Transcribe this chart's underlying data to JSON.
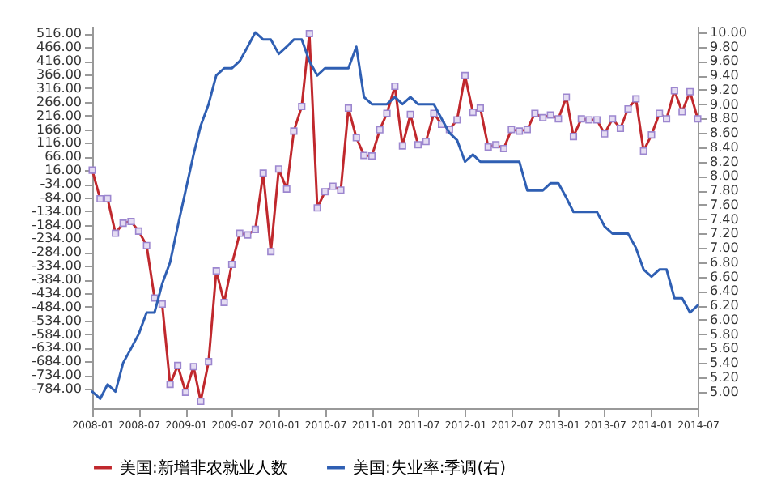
{
  "chart_data": {
    "type": "line",
    "x": [
      "2008-01",
      "2008-02",
      "2008-03",
      "2008-04",
      "2008-05",
      "2008-06",
      "2008-07",
      "2008-08",
      "2008-09",
      "2008-10",
      "2008-11",
      "2008-12",
      "2009-01",
      "2009-02",
      "2009-03",
      "2009-04",
      "2009-05",
      "2009-06",
      "2009-07",
      "2009-08",
      "2009-09",
      "2009-10",
      "2009-11",
      "2009-12",
      "2010-01",
      "2010-02",
      "2010-03",
      "2010-04",
      "2010-05",
      "2010-06",
      "2010-07",
      "2010-08",
      "2010-09",
      "2010-10",
      "2010-11",
      "2010-12",
      "2011-01",
      "2011-02",
      "2011-03",
      "2011-04",
      "2011-05",
      "2011-06",
      "2011-07",
      "2011-08",
      "2011-09",
      "2011-10",
      "2011-11",
      "2011-12",
      "2012-01",
      "2012-02",
      "2012-03",
      "2012-04",
      "2012-05",
      "2012-06",
      "2012-07",
      "2012-08",
      "2012-09",
      "2012-10",
      "2012-11",
      "2012-12",
      "2013-01",
      "2013-02",
      "2013-03",
      "2013-04",
      "2013-05",
      "2013-06",
      "2013-07",
      "2013-08",
      "2013-09",
      "2013-10",
      "2013-11",
      "2013-12",
      "2014-01",
      "2014-02",
      "2014-03",
      "2014-04",
      "2014-05",
      "2014-06",
      "2014-07"
    ],
    "series": [
      {
        "name": "美国:新增非农就业人数",
        "color": "#c0282d",
        "marker": "square",
        "values": [
          16,
          -89,
          -88,
          -215,
          -178,
          -172,
          -207,
          -260,
          -452,
          -474,
          -768,
          -699,
          -797,
          -703,
          -830,
          -685,
          -353,
          -468,
          -329,
          -215,
          -221,
          -201,
          5,
          -282,
          20,
          -53,
          159,
          249,
          516,
          -122,
          -63,
          -43,
          -57,
          243,
          135,
          70,
          68,
          164,
          224,
          323,
          105,
          220,
          109,
          121,
          224,
          184,
          165,
          200,
          362,
          228,
          243,
          101,
          109,
          95,
          165,
          159,
          165,
          224,
          208,
          218,
          204,
          283,
          139,
          204,
          200,
          200,
          149,
          204,
          169,
          240,
          277,
          86,
          145,
          224,
          204,
          307,
          230,
          303,
          204
        ]
      },
      {
        "name": "美国:失业率:季调(右)",
        "color": "#2f5fb3",
        "axis": "y2",
        "values": [
          5.0,
          4.9,
          5.1,
          5.0,
          5.4,
          5.6,
          5.8,
          6.1,
          6.1,
          6.5,
          6.8,
          7.3,
          7.8,
          8.3,
          8.7,
          9.0,
          9.4,
          9.5,
          9.5,
          9.6,
          9.8,
          10.0,
          9.9,
          9.9,
          9.7,
          9.8,
          9.9,
          9.9,
          9.6,
          9.4,
          9.5,
          9.5,
          9.5,
          9.5,
          9.8,
          9.1,
          9.0,
          9.0,
          9.0,
          9.1,
          9.0,
          9.1,
          9.0,
          9.0,
          9.0,
          8.8,
          8.6,
          8.5,
          8.2,
          8.3,
          8.2,
          8.2,
          8.2,
          8.2,
          8.2,
          8.2,
          7.8,
          7.8,
          7.8,
          7.9,
          7.9,
          7.7,
          7.5,
          7.5,
          7.5,
          7.5,
          7.3,
          7.2,
          7.2,
          7.2,
          7.0,
          6.7,
          6.6,
          6.7,
          6.7,
          6.3,
          6.3,
          6.1,
          6.2
        ]
      }
    ],
    "xlim": [
      "2008-01",
      "2014-07"
    ],
    "xticks": [
      "2008-01",
      "2008-07",
      "2009-01",
      "2009-07",
      "2010-01",
      "2010-07",
      "2011-01",
      "2011-07",
      "2012-01",
      "2012-07",
      "2013-01",
      "2013-07",
      "2014-01",
      "2014-07"
    ],
    "ylim": [
      -855,
      544
    ],
    "yticks": [
      {
        "value": -784,
        "label": "-784.00"
      },
      {
        "value": -734,
        "label": "-734.00"
      },
      {
        "value": -684,
        "label": "-684.00"
      },
      {
        "value": -634,
        "label": "-634.00"
      },
      {
        "value": -584,
        "label": "-584.00"
      },
      {
        "value": -534,
        "label": "-534.00"
      },
      {
        "value": -484,
        "label": "-484.00"
      },
      {
        "value": -434,
        "label": "-434.00"
      },
      {
        "value": -384,
        "label": "-384.00"
      },
      {
        "value": -334,
        "label": "-334.00"
      },
      {
        "value": -284,
        "label": "-284.00"
      },
      {
        "value": -234,
        "label": "-234.00"
      },
      {
        "value": -184,
        "label": "-184.00"
      },
      {
        "value": -134,
        "label": "-134.00"
      },
      {
        "value": -84,
        "label": "-84.00"
      },
      {
        "value": -34,
        "label": "-34.00"
      },
      {
        "value": 16,
        "label": "16.00"
      },
      {
        "value": 66,
        "label": "66.00"
      },
      {
        "value": 116,
        "label": "116.00"
      },
      {
        "value": 166,
        "label": "166.00"
      },
      {
        "value": 216,
        "label": "216.00"
      },
      {
        "value": 266,
        "label": "266.00"
      },
      {
        "value": 316,
        "label": "316.00"
      },
      {
        "value": 366,
        "label": "366.00"
      },
      {
        "value": 416,
        "label": "416.00"
      },
      {
        "value": 466,
        "label": "466.00"
      },
      {
        "value": 516,
        "label": "516.00"
      }
    ],
    "y2lim": [
      4.77,
      10.09
    ],
    "y2ticks": [
      {
        "value": 5,
        "label": "5.00"
      },
      {
        "value": 5.2,
        "label": "5.20"
      },
      {
        "value": 5.4,
        "label": "5.40"
      },
      {
        "value": 5.6,
        "label": "5.60"
      },
      {
        "value": 5.8,
        "label": "5.80"
      },
      {
        "value": 6,
        "label": "6.00"
      },
      {
        "value": 6.2,
        "label": "6.20"
      },
      {
        "value": 6.4,
        "label": "6.40"
      },
      {
        "value": 6.6,
        "label": "6.60"
      },
      {
        "value": 6.8,
        "label": "6.80"
      },
      {
        "value": 7,
        "label": "7.00"
      },
      {
        "value": 7.2,
        "label": "7.20"
      },
      {
        "value": 7.4,
        "label": "7.40"
      },
      {
        "value": 7.6,
        "label": "7.60"
      },
      {
        "value": 7.8,
        "label": "7.80"
      },
      {
        "value": 8,
        "label": "8.00"
      },
      {
        "value": 8.2,
        "label": "8.20"
      },
      {
        "value": 8.4,
        "label": "8.40"
      },
      {
        "value": 8.6,
        "label": "8.60"
      },
      {
        "value": 8.8,
        "label": "8.80"
      },
      {
        "value": 9,
        "label": "9.00"
      },
      {
        "value": 9.2,
        "label": "9.20"
      },
      {
        "value": 9.4,
        "label": "9.40"
      },
      {
        "value": 9.6,
        "label": "9.60"
      },
      {
        "value": 9.8,
        "label": "9.80"
      },
      {
        "value": 10,
        "label": "10.00"
      }
    ],
    "legend": "bottom",
    "line_style": "solid"
  }
}
